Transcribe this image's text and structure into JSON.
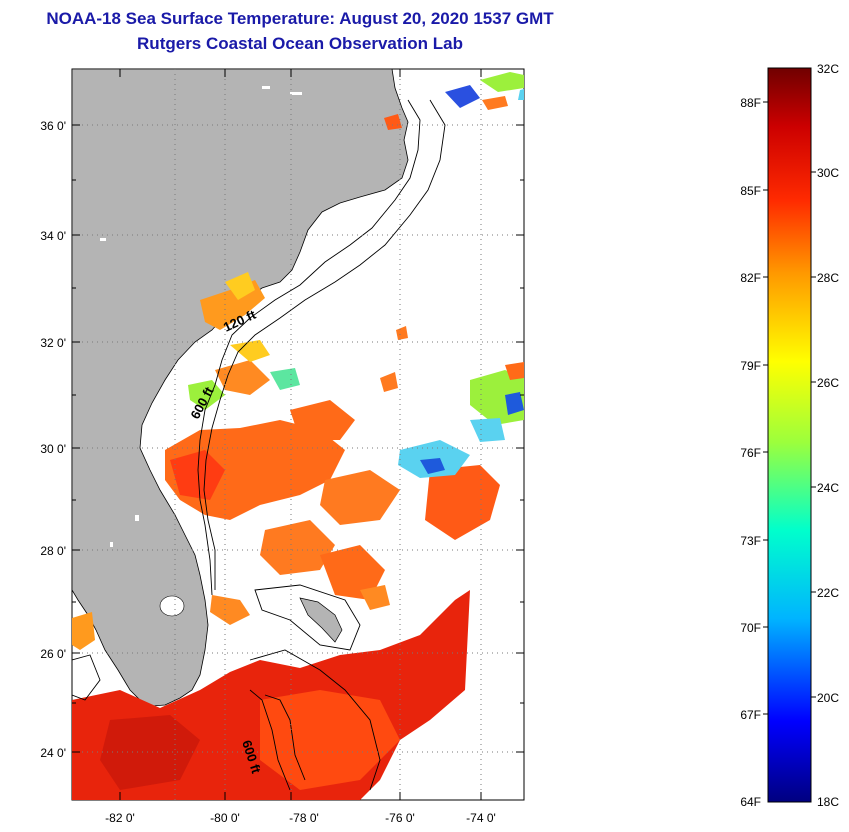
{
  "header": {
    "title": "NOAA-18 Sea Surface Temperature:  August 20, 2020 1537 GMT",
    "subtitle": "Rutgers Coastal Ocean Observation Lab"
  },
  "map": {
    "lon_labels": [
      "-82 0'",
      "-80 0'",
      "-78 0'",
      "-76 0'",
      "-74 0'"
    ],
    "lat_labels": [
      "36 0'",
      "34 0'",
      "32 0'",
      "30 0'",
      "28 0'",
      "26 0'",
      "24 0'"
    ],
    "isobaths": [
      "120 ft",
      "600 ft",
      "600 ft"
    ],
    "colors": {
      "land": "#b4b4b4",
      "ocean": "#ffffff"
    }
  },
  "colorbar": {
    "celsius_labels": [
      "32C",
      "30C",
      "28C",
      "26C",
      "24C",
      "22C",
      "20C",
      "18C"
    ],
    "fahrenheit_labels": [
      "88F",
      "85F",
      "82F",
      "79F",
      "76F",
      "73F",
      "70F",
      "67F",
      "64F"
    ],
    "stops": [
      "#000080",
      "#0000ff",
      "#00b4ff",
      "#00ffcc",
      "#9cff3c",
      "#ffff00",
      "#ff9900",
      "#ff2a00",
      "#cc0000",
      "#700000"
    ]
  }
}
